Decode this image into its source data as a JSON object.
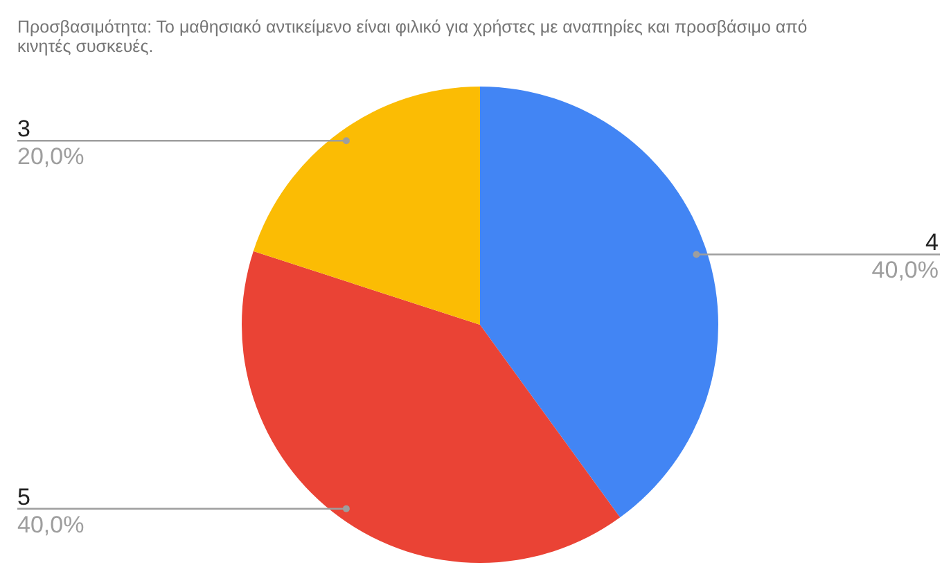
{
  "chart_data": {
    "type": "pie",
    "title": "Προσβασιμότητα: Το μαθησιακό αντικείμενο είναι φιλικό για χρήστες με αναπηρίες και προσβάσιμο από κινητές συσκευές.",
    "categories": [
      "4",
      "5",
      "3"
    ],
    "values": [
      40,
      40,
      20
    ],
    "colors": [
      "#4285f4",
      "#ea4335",
      "#fbbc04"
    ],
    "value_labels": [
      "40,0%",
      "40,0%",
      "20,0%"
    ]
  }
}
